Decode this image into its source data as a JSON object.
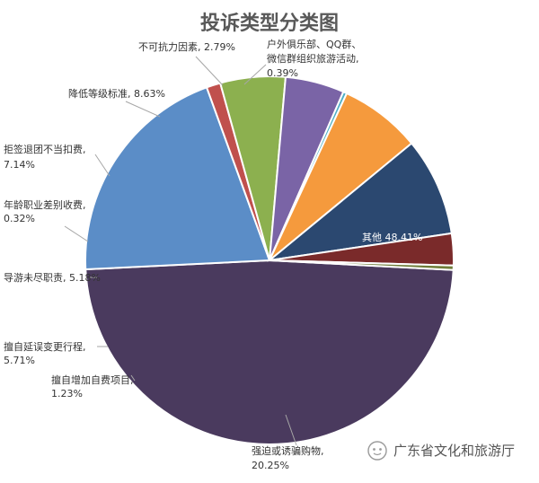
{
  "chart_data": {
    "type": "pie",
    "title": "投诉类型分类图",
    "slices": [
      {
        "label": "其他",
        "pct_text": "48.41%",
        "value": 48.41,
        "color": "#4a3a5e"
      },
      {
        "label": "强迫或诱骗购物,",
        "pct_text": "20.25%",
        "value": 20.25,
        "color": "#5b8dc7"
      },
      {
        "label": "擅自增加自费项目,",
        "pct_text": "1.23%",
        "value": 1.23,
        "color": "#c0504d"
      },
      {
        "label": "擅自延误变更行程,",
        "pct_text": "5.71%",
        "value": 5.71,
        "color": "#8cb04f"
      },
      {
        "label": "导游未尽职责,",
        "pct_text": "5.18%",
        "value": 5.18,
        "color": "#7a64a6"
      },
      {
        "label": "年龄职业差别收费,",
        "pct_text": "0.32%",
        "value": 0.32,
        "color": "#4eafc6"
      },
      {
        "label": "拒签退团不当扣费,",
        "pct_text": "7.14%",
        "value": 7.14,
        "color": "#f59a3d"
      },
      {
        "label": "降低等级标准,",
        "pct_text": "8.63%",
        "value": 8.63,
        "color": "#2b4870"
      },
      {
        "label": "不可抗力因素,",
        "pct_text": "2.79%",
        "value": 2.79,
        "color": "#7a2a2a"
      },
      {
        "label": "户外俱乐部、QQ群、微信群组织旅游活动,",
        "pct_text": "0.39%",
        "value": 0.39,
        "color": "#6f7d3a"
      }
    ],
    "legend": "none"
  },
  "watermark": {
    "text": "广东省文化和旅游厅",
    "icon": "wechat-icon"
  }
}
